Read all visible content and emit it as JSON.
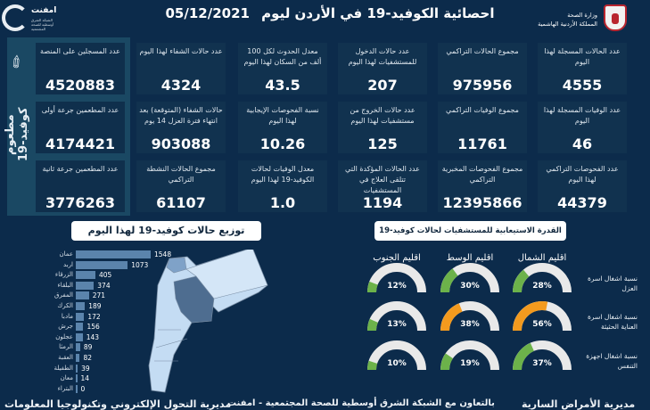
{
  "header": {
    "title": "احصائية الكوفيد-19 في الأردن ليوم",
    "date": "05/12/2021",
    "ministry": "وزارة الصحة",
    "kingdom": "المملكة الأردنية الهاشمية",
    "partner_logo": "امفنت",
    "partner_logo_sub": "الشبكة الشرق أوسطية للصحة المجتمعية"
  },
  "vaccine": {
    "label": "مطعوم كوفيد-19",
    "icon": "syringe-icon",
    "cards": [
      {
        "label": "عدد المسجلين على المنصة",
        "value": "4520883"
      },
      {
        "label": "عدد المطعمين جرعة أولى",
        "value": "4174421"
      },
      {
        "label": "عدد المطعمين جرعة ثانية",
        "value": "3776263"
      }
    ]
  },
  "stats": [
    [
      {
        "label": "عدد حالات الشفاء لهذا اليوم",
        "value": "4324"
      },
      {
        "label": "معدل الحدوث لكل 100 ألف من السكان لهذا اليوم",
        "value": "43.5"
      },
      {
        "label": "عدد حالات الدخول للمستشفيات لهذا اليوم",
        "value": "207"
      },
      {
        "label": "مجموع الحالات التراكمي",
        "value": "975956"
      },
      {
        "label": "عدد الحالات المسجلة لهذا اليوم",
        "value": "4555"
      }
    ],
    [
      {
        "label": "حالات الشفاء (المتوقعة) بعد انتهاء فترة العزل 14 يوم",
        "value": "903088"
      },
      {
        "label": "نسبة الفحوصات الإيجابية لهذا اليوم",
        "value": "10.26"
      },
      {
        "label": "عدد حالات الخروج من مستشفيات لهذا اليوم",
        "value": "125"
      },
      {
        "label": "مجموع الوفيات التراكمي",
        "value": "11761"
      },
      {
        "label": "عدد الوفيات المسجلة لهذا اليوم",
        "value": "46"
      }
    ],
    [
      {
        "label": "مجموع الحالات النشطة التراكمي",
        "value": "61107"
      },
      {
        "label": "معدل الوفيات لحالات الكوفيد-19 لهذا اليوم",
        "value": "1.0"
      },
      {
        "label": "عدد الحالات المؤكدة التي تتلقى العلاج في المستشفيات",
        "value": "1194"
      },
      {
        "label": "مجموع الفحوصات المخبرية التراكمي",
        "value": "12395866"
      },
      {
        "label": "عدد الفحوصات التراكمي لهذا اليوم",
        "value": "44379"
      }
    ]
  ],
  "distribution": {
    "title": "توزيع حالات كوفيد-19 لهذا اليوم",
    "bar_color": "#5b84ac",
    "items": [
      {
        "name": "عمان",
        "value": 1548
      },
      {
        "name": "اربد",
        "value": 1073
      },
      {
        "name": "الزرقاء",
        "value": 405
      },
      {
        "name": "البلقاء",
        "value": 374
      },
      {
        "name": "المفرق",
        "value": 271
      },
      {
        "name": "الكرك",
        "value": 189
      },
      {
        "name": "مادبا",
        "value": 172
      },
      {
        "name": "جرش",
        "value": 156
      },
      {
        "name": "عجلون",
        "value": 143
      },
      {
        "name": "الرمثا",
        "value": 89
      },
      {
        "name": "العقبة",
        "value": 82
      },
      {
        "name": "الطفيلة",
        "value": 39
      },
      {
        "name": "معان",
        "value": 14
      },
      {
        "name": "البتراء",
        "value": 0
      }
    ]
  },
  "capacity": {
    "title": "القدرة الاستيعابية للمستشفيات لحالات كوفيد-19",
    "regions": [
      "اقليم الجنوب",
      "اقليم الوسط",
      "اقليم الشمال"
    ],
    "rows": [
      {
        "label": "نسبة اشغال اسرة العزل",
        "values": [
          12,
          30,
          28
        ],
        "colors": [
          "#6cb24a",
          "#6cb24a",
          "#6cb24a"
        ]
      },
      {
        "label": "نسبة اشغال اسرة العناية الحثيثة",
        "values": [
          13,
          38,
          56
        ],
        "colors": [
          "#6cb24a",
          "#f39a1e",
          "#f39a1e"
        ]
      },
      {
        "label": "نسبة اشغال اجهزة التنفس",
        "values": [
          10,
          19,
          37
        ],
        "colors": [
          "#6cb24a",
          "#6cb24a",
          "#6cb24a"
        ]
      }
    ],
    "track_color": "#e9e9e9"
  },
  "footer": {
    "left": "مديرية التحول الإلكتروني وتكنولوجيا المعلومات",
    "middle": "بالتعاون مع الشبكة الشرق أوسطية للصحة المجتمعية - امفنت",
    "right": "مديرية الأمراض السارية"
  }
}
